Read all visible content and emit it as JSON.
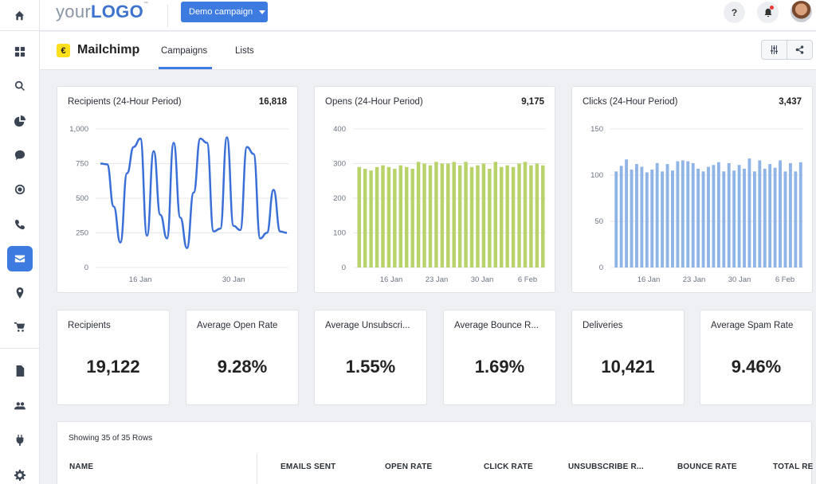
{
  "header": {
    "logo_prefix": "your",
    "logo_main": "LOGO",
    "logo_tm": "™",
    "campaign_select": "Demo campaign",
    "help_label": "?"
  },
  "integration": {
    "name": "Mailchimp",
    "icon_glyph": "€"
  },
  "tabs": [
    {
      "label": "Campaigns",
      "active": true
    },
    {
      "label": "Lists",
      "active": false
    }
  ],
  "sidebar": {
    "items": [
      "home-icon",
      "apps-grid-icon",
      "search-icon",
      "pie-chart-icon",
      "chat-icon",
      "target-icon",
      "phone-icon",
      "mail-icon",
      "location-pin-icon",
      "cart-icon",
      "report-icon",
      "users-icon",
      "plug-icon",
      "gear-icon"
    ],
    "active": "mail-icon"
  },
  "charts": [
    {
      "title": "Recipients (24-Hour Period)",
      "total": "16,818",
      "chart_data": {
        "type": "line",
        "color": "#3a6fd8",
        "x_ticks": [
          "16 Jan",
          "30 Jan"
        ],
        "y_ticks": [
          "1,000",
          "750",
          "500",
          "250",
          "0"
        ],
        "ylim": [
          0,
          1000
        ],
        "values": [
          750,
          745,
          440,
          180,
          680,
          870,
          930,
          230,
          840,
          380,
          210,
          900,
          360,
          140,
          540,
          930,
          900,
          260,
          280,
          940,
          300,
          270,
          870,
          820,
          210,
          250,
          560,
          260,
          250
        ]
      }
    },
    {
      "title": "Opens (24-Hour Period)",
      "total": "9,175",
      "chart_data": {
        "type": "bar",
        "color": "#b9d36b",
        "x_ticks": [
          "16 Jan",
          "23 Jan",
          "30 Jan",
          "6 Feb"
        ],
        "y_ticks": [
          "400",
          "300",
          "200",
          "100",
          "0"
        ],
        "ylim": [
          0,
          400
        ],
        "values": [
          290,
          285,
          280,
          290,
          295,
          290,
          285,
          295,
          290,
          285,
          305,
          300,
          295,
          305,
          300,
          300,
          305,
          295,
          305,
          290,
          295,
          300,
          285,
          305,
          290,
          295,
          290,
          300,
          305,
          295,
          300,
          295
        ]
      }
    },
    {
      "title": "Clicks (24-Hour Period)",
      "total": "3,437",
      "chart_data": {
        "type": "bar",
        "color": "#8fb4e6",
        "x_ticks": [
          "16 Jan",
          "23 Jan",
          "30 Jan",
          "6 Feb"
        ],
        "y_ticks": [
          "150",
          "100",
          "50",
          "0"
        ],
        "ylim": [
          0,
          150
        ],
        "values": [
          104,
          110,
          117,
          106,
          112,
          109,
          103,
          106,
          113,
          104,
          112,
          105,
          115,
          116,
          115,
          113,
          107,
          104,
          109,
          111,
          114,
          104,
          113,
          105,
          111,
          107,
          118,
          104,
          116,
          107,
          112,
          108,
          116,
          104,
          113,
          104,
          114
        ]
      }
    }
  ],
  "stats": [
    {
      "label": "Recipients",
      "value": "19,122"
    },
    {
      "label": "Average Open Rate",
      "value": "9.28%"
    },
    {
      "label": "Average Unsubscri...",
      "value": "1.55%"
    },
    {
      "label": "Average Bounce R...",
      "value": "1.69%"
    },
    {
      "label": "Deliveries",
      "value": "10,421"
    },
    {
      "label": "Average Spam Rate",
      "value": "9.46%"
    }
  ],
  "table": {
    "row_info": "Showing 35 of 35 Rows",
    "columns": [
      "NAME",
      "EMAILS SENT",
      "OPEN RATE",
      "CLICK RATE",
      "UNSUBSCRIBE R...",
      "BOUNCE RATE",
      "TOTAL RE"
    ]
  }
}
